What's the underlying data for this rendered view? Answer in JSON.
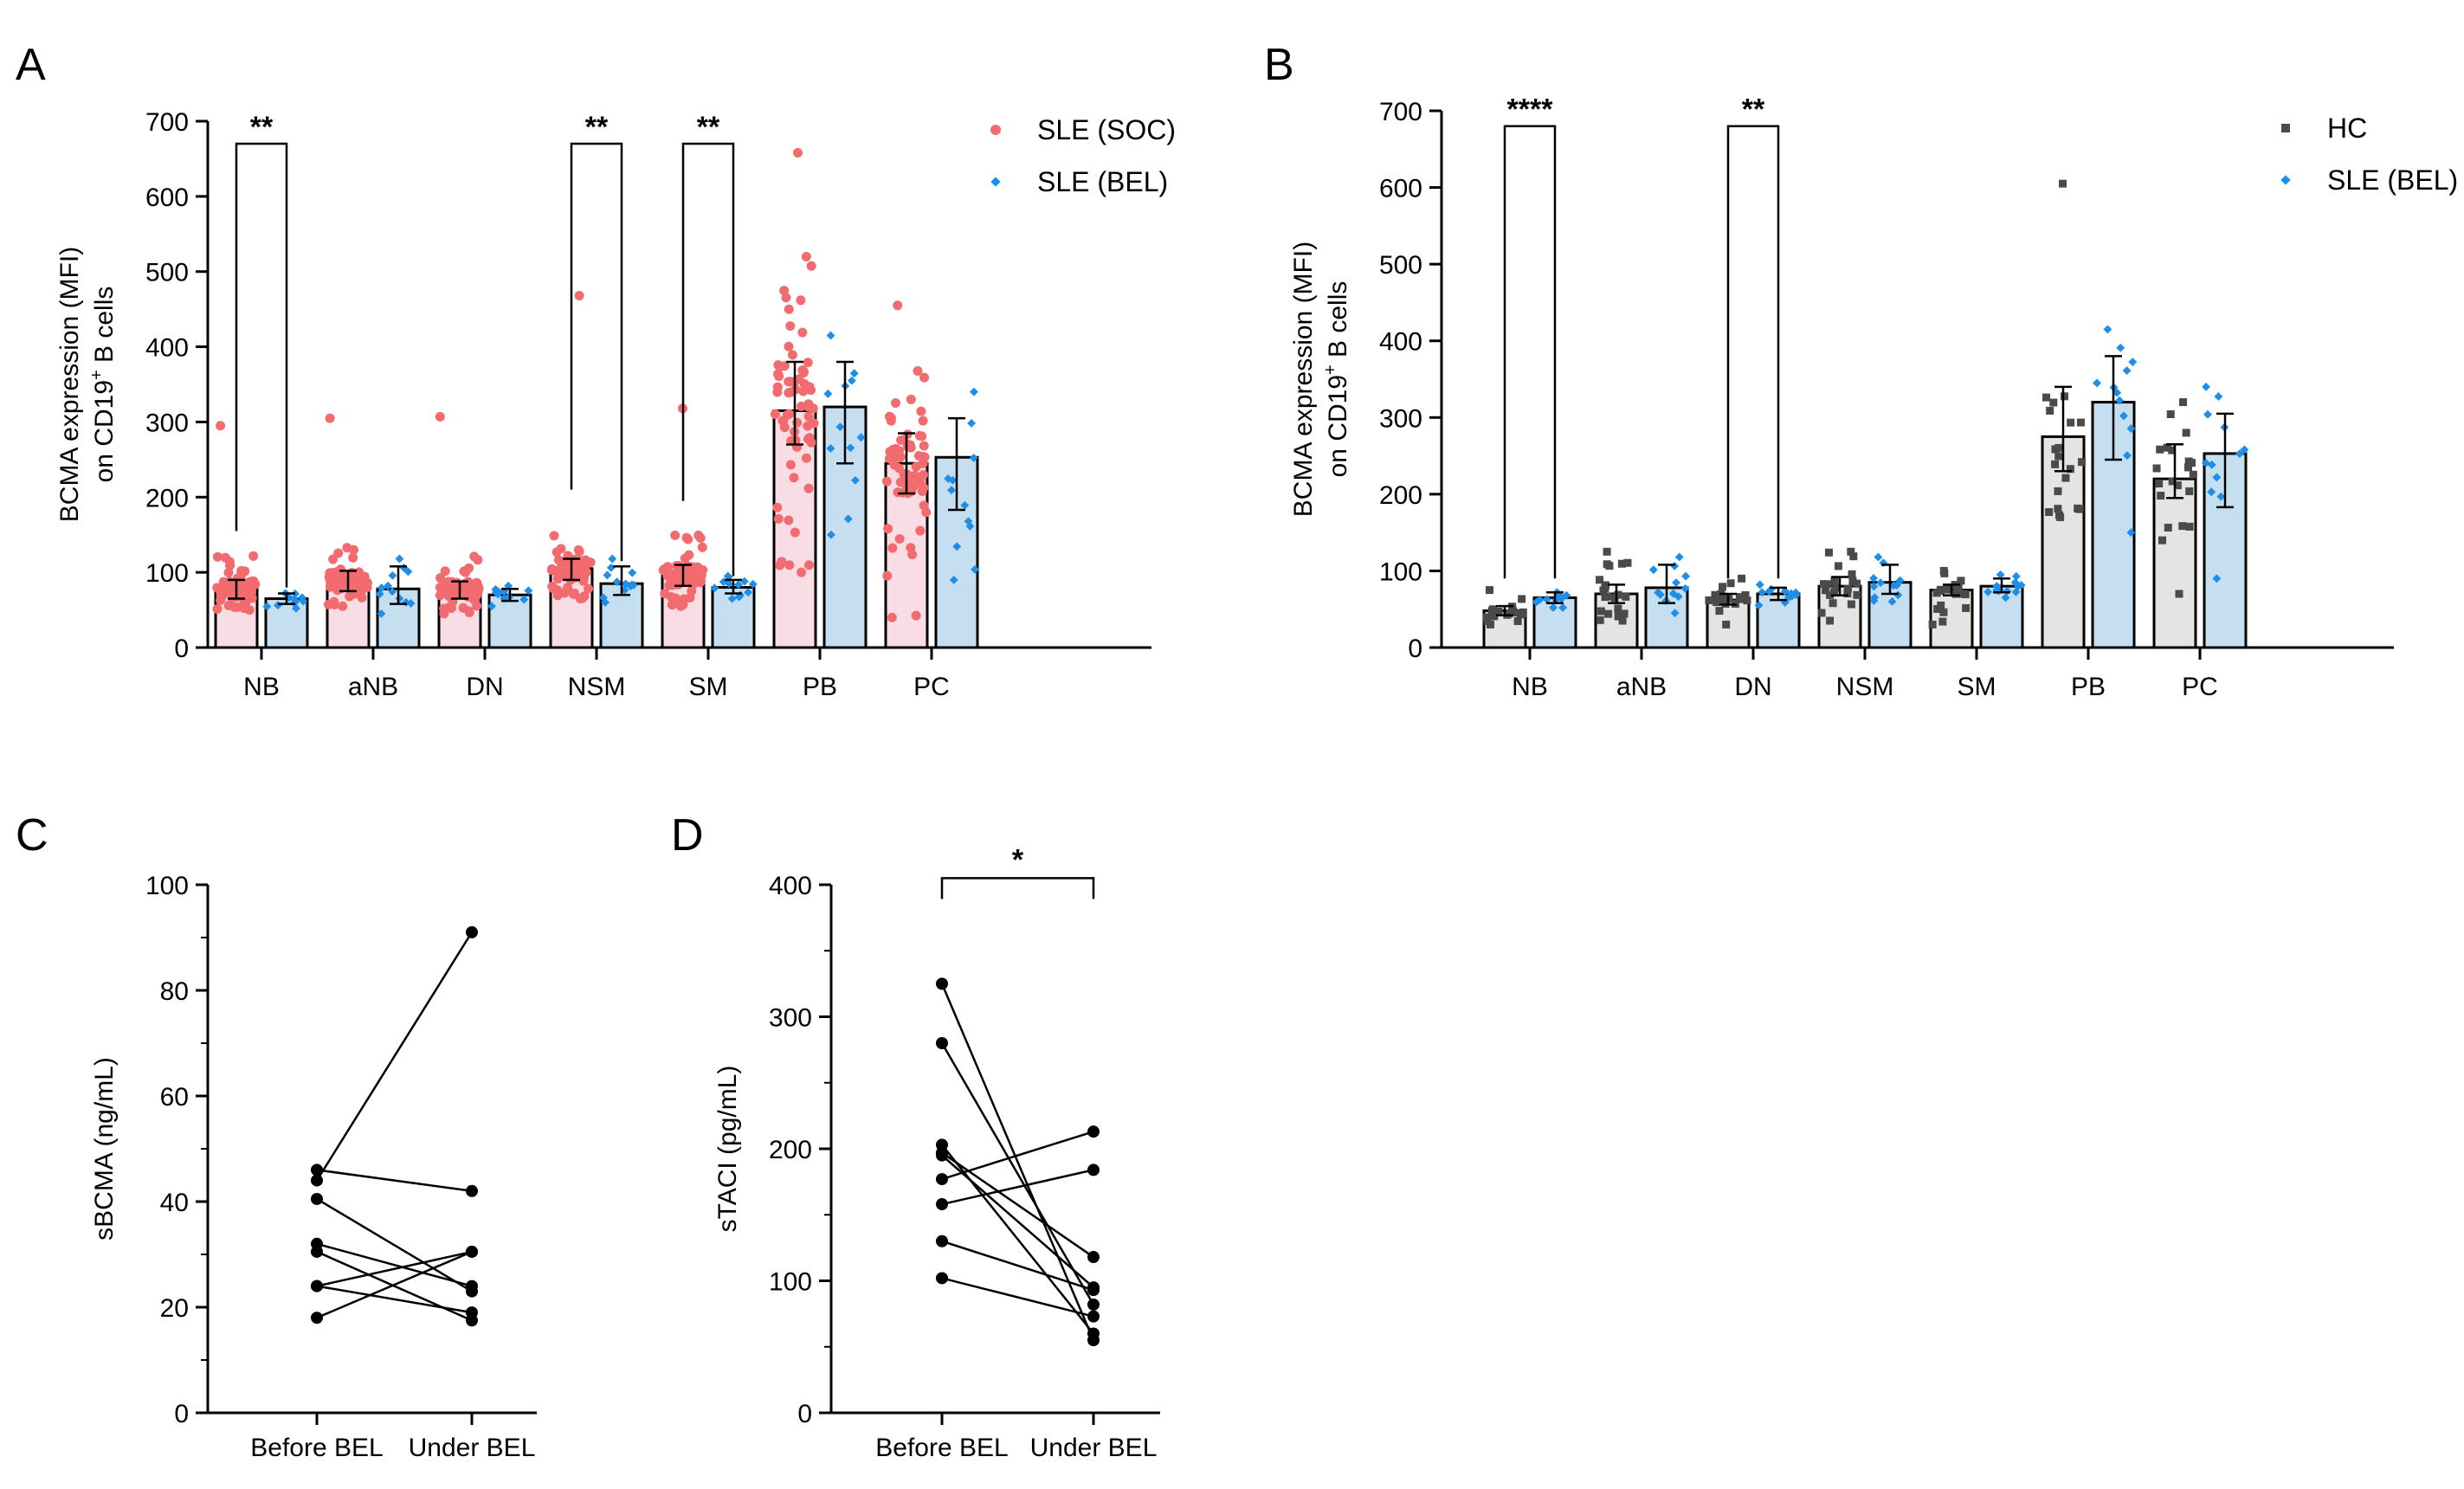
{
  "chart_data": [
    {
      "panel_label": "A",
      "type": "bar",
      "ylabel": "BCMA expression (MFI)",
      "ylabel_line2": "on CD19",
      "ylabel_sup": "+",
      "ylabel_line2_end": " B cells",
      "ylim": [
        0,
        700
      ],
      "yticks": [
        0,
        100,
        200,
        300,
        400,
        500,
        600,
        700
      ],
      "categories": [
        "NB",
        "aNB",
        "DN",
        "NSM",
        "SM",
        "PB",
        "PC"
      ],
      "legend_position": "top-right",
      "series": [
        {
          "name": "SLE (SOC)",
          "color": "#f26b6e",
          "fill": "#f9dde4",
          "values": [
            78,
            88,
            75,
            105,
            95,
            315,
            245
          ],
          "err_low": [
            65,
            75,
            65,
            90,
            82,
            270,
            205
          ],
          "err_high": [
            90,
            102,
            88,
            118,
            110,
            380,
            285
          ],
          "points_max": [
            295,
            305,
            307,
            468,
            318,
            658,
            455
          ],
          "points_min": [
            50,
            55,
            45,
            65,
            55,
            100,
            40
          ],
          "n": 80
        },
        {
          "name": "SLE (BEL)",
          "color": "#1f8ee8",
          "fill": "#c5dff1",
          "values": [
            65,
            78,
            70,
            85,
            80,
            320,
            253
          ],
          "err_low": [
            58,
            58,
            62,
            70,
            72,
            245,
            183
          ],
          "err_high": [
            72,
            108,
            78,
            108,
            90,
            380,
            305
          ],
          "points_max": [
            72,
            118,
            82,
            118,
            95,
            415,
            340
          ],
          "points_min": [
            52,
            45,
            55,
            60,
            65,
            150,
            90
          ],
          "n": 14
        }
      ],
      "significance": [
        {
          "group": "NB",
          "label": "**",
          "y": 670,
          "left_from": 155,
          "right_from": 80
        },
        {
          "group": "NSM",
          "label": "**",
          "y": 670,
          "left_from": 210,
          "right_from": 115
        },
        {
          "group": "SM",
          "label": "**",
          "y": 670,
          "left_from": 195,
          "right_from": 95
        }
      ]
    },
    {
      "panel_label": "B",
      "type": "bar",
      "ylabel": "BCMA expression (MFI)",
      "ylabel_line2": "on CD19",
      "ylabel_sup": "+",
      "ylabel_line2_end": " B cells",
      "ylim": [
        0,
        700
      ],
      "yticks": [
        0,
        100,
        200,
        300,
        400,
        500,
        600,
        700
      ],
      "categories": [
        "NB",
        "aNB",
        "DN",
        "NSM",
        "SM",
        "PB",
        "PC"
      ],
      "legend_position": "top-right",
      "series": [
        {
          "name": "HC",
          "color": "#4a4a4a",
          "fill": "#e4e4e4",
          "values": [
            48,
            70,
            62,
            80,
            75,
            275,
            220
          ],
          "err_low": [
            42,
            58,
            56,
            68,
            68,
            230,
            195
          ],
          "err_high": [
            54,
            82,
            70,
            92,
            82,
            340,
            265
          ],
          "points_max": [
            75,
            125,
            90,
            125,
            100,
            605,
            320
          ],
          "points_min": [
            30,
            35,
            30,
            35,
            30,
            170,
            70
          ],
          "n": 25
        },
        {
          "name": "SLE (BEL)",
          "color": "#1f8ee8",
          "fill": "#c5dff1",
          "values": [
            65,
            78,
            70,
            85,
            80,
            320,
            253
          ],
          "err_low": [
            58,
            58,
            62,
            70,
            72,
            245,
            183
          ],
          "err_high": [
            72,
            108,
            78,
            108,
            90,
            380,
            305
          ],
          "points_max": [
            72,
            118,
            82,
            118,
            95,
            415,
            340
          ],
          "points_min": [
            52,
            45,
            55,
            60,
            65,
            150,
            90
          ],
          "n": 14
        }
      ],
      "significance": [
        {
          "group": "NB",
          "label": "****",
          "y": 680,
          "left_from": 90,
          "right_from": 90
        },
        {
          "group": "DN",
          "label": "**",
          "y": 680,
          "left_from": 90,
          "right_from": 90
        }
      ]
    },
    {
      "panel_label": "C",
      "type": "line",
      "ylabel": "sBCMA (ng/mL)",
      "ylim": [
        0,
        100
      ],
      "yticks": [
        0,
        20,
        40,
        60,
        80,
        100
      ],
      "categories": [
        "Before BEL",
        "Under BEL"
      ],
      "pairs": [
        [
          44,
          91
        ],
        [
          46,
          42
        ],
        [
          40.5,
          23
        ],
        [
          32,
          24
        ],
        [
          30.5,
          17.5
        ],
        [
          24,
          19
        ],
        [
          24,
          30.5
        ],
        [
          18,
          30.5
        ]
      ],
      "significance": []
    },
    {
      "panel_label": "D",
      "type": "line",
      "ylabel": "sTACI (pg/mL)",
      "ylim": [
        0,
        400
      ],
      "yticks": [
        0,
        100,
        200,
        300,
        400
      ],
      "categories": [
        "Before BEL",
        "Under BEL"
      ],
      "pairs": [
        [
          325,
          55
        ],
        [
          280,
          82
        ],
        [
          203,
          60
        ],
        [
          197,
          118
        ],
        [
          195,
          95
        ],
        [
          177,
          213
        ],
        [
          158,
          184
        ],
        [
          130,
          93
        ],
        [
          102,
          73
        ]
      ],
      "significance": [
        {
          "label": "*",
          "y": 405
        }
      ]
    }
  ]
}
